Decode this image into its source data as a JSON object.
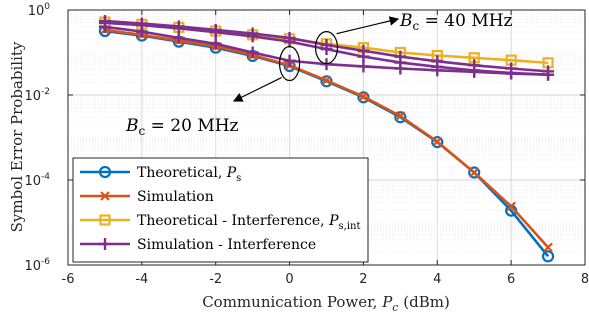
{
  "chart_data": {
    "type": "line",
    "xlabel": "Communication Power, P_c (dBm)",
    "ylabel": "Symbol Error Probability",
    "yscale": "log",
    "xlim": [
      -6,
      8
    ],
    "ylim": [
      1e-06,
      1
    ],
    "xticks": [
      "-6",
      "-4",
      "-2",
      "0",
      "2",
      "4",
      "6",
      "8"
    ],
    "yticks": [
      {
        "base": "10",
        "exp": "0"
      },
      {
        "base": "10",
        "exp": "-2"
      },
      {
        "base": "10",
        "exp": "-4"
      },
      {
        "base": "10",
        "exp": "-6"
      }
    ],
    "grid": true,
    "legend_position": "bottom-left",
    "series": [
      {
        "name": "Theoretical, P_s",
        "name_parts": [
          "Theoretical, ",
          "P",
          "s"
        ],
        "color": "#0072BD",
        "marker": "circle",
        "group": "20MHz",
        "x": [
          -5,
          -4,
          -3,
          -2,
          -1,
          0,
          1,
          2,
          3,
          4,
          5,
          6,
          7
        ],
        "y": [
          0.32,
          0.25,
          0.18,
          0.13,
          0.083,
          0.048,
          0.021,
          0.0088,
          0.003,
          0.00078,
          0.00015,
          1.9e-05,
          1.6e-06
        ]
      },
      {
        "name": "Simulation",
        "name_parts": [
          "Simulation",
          "",
          ""
        ],
        "color": "#D95319",
        "marker": "x",
        "group": "20MHz",
        "x": [
          -5,
          -4,
          -3,
          -2,
          -1,
          0,
          1,
          2,
          3,
          4,
          5,
          6,
          7
        ],
        "y": [
          0.34,
          0.26,
          0.19,
          0.14,
          0.087,
          0.05,
          0.022,
          0.0092,
          0.0032,
          0.0008,
          0.00015,
          2.4e-05,
          2.6e-06
        ]
      },
      {
        "name": "Theoretical - Interference, P_s,int",
        "name_parts": [
          "Theoretical - Interference, ",
          "P",
          "s,int"
        ],
        "color": "#EDB120",
        "marker": "square",
        "group": "40MHz",
        "x": [
          -5,
          -4,
          -3,
          -2,
          -1,
          0,
          1,
          2,
          3,
          4,
          5,
          6,
          7
        ],
        "y": [
          0.52,
          0.46,
          0.39,
          0.32,
          0.26,
          0.21,
          0.16,
          0.13,
          0.1,
          0.085,
          0.075,
          0.066,
          0.057
        ]
      },
      {
        "name": "Simulation - Interference",
        "name_parts": [
          "Simulation - Interference",
          "",
          ""
        ],
        "color": "#7E2F8E",
        "marker": "plus",
        "group": "40MHz",
        "x": [
          -5,
          -4,
          -3,
          -2,
          -1,
          0,
          1,
          2,
          3,
          4,
          5,
          6,
          7
        ],
        "y": [
          0.5,
          0.44,
          0.37,
          0.3,
          0.24,
          0.18,
          0.12,
          0.08,
          0.058,
          0.046,
          0.038,
          0.033,
          0.03
        ]
      },
      {
        "name": "",
        "color": "#7E2F8E",
        "marker": "plus",
        "group": "20MHz",
        "x": [
          -5,
          -4,
          -3,
          -2,
          -1,
          0,
          1,
          2,
          3,
          4,
          5,
          6,
          7
        ],
        "y": [
          0.4,
          0.31,
          0.22,
          0.16,
          0.1,
          0.064,
          0.053,
          0.047,
          0.042,
          0.038,
          0.035,
          0.032,
          0.03
        ]
      },
      {
        "name": "",
        "color": "#7E2F8E",
        "marker": "plus",
        "group": "40MHz",
        "x": [
          -5,
          -4,
          -3,
          -2,
          -1,
          0,
          1,
          2,
          3,
          4,
          5,
          6,
          7
        ],
        "y": [
          0.55,
          0.48,
          0.41,
          0.34,
          0.28,
          0.22,
          0.15,
          0.11,
          0.08,
          0.062,
          0.05,
          0.042,
          0.036
        ]
      }
    ],
    "annotations": [
      {
        "sym": "B",
        "sub": "c",
        "text": " = 40 MHz"
      },
      {
        "sym": "B",
        "sub": "c",
        "text": " = 20 MHz"
      }
    ]
  }
}
